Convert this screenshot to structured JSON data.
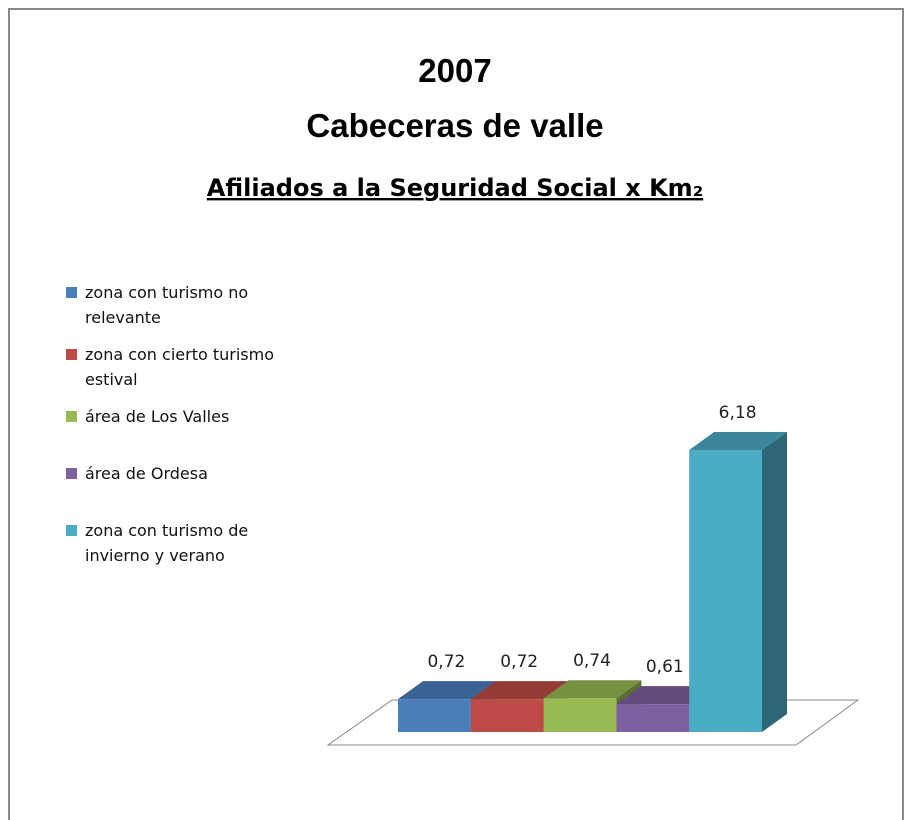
{
  "chart_data": {
    "type": "bar3d",
    "title": [
      "2007",
      "Cabeceras de valle"
    ],
    "subtitle": "Afiliados a la Seguridad Social x Km₂",
    "legend": "left",
    "series": [
      {
        "name": "zona con turismo no relevante",
        "color": "#4a7ebb",
        "values": [
          0.72
        ],
        "value_labels": [
          "0,72"
        ]
      },
      {
        "name": "zona con cierto turismo estival",
        "color": "#be4b48",
        "values": [
          0.72
        ],
        "value_labels": [
          "0,72"
        ]
      },
      {
        "name": "área de Los Valles",
        "color": "#98b954",
        "values": [
          0.74
        ],
        "value_labels": [
          "0,74"
        ]
      },
      {
        "name": "área de Ordesa",
        "color": "#7d60a0",
        "values": [
          0.61
        ],
        "value_labels": [
          "0,61"
        ]
      },
      {
        "name": "zona con turismo de invierno y verano",
        "color": "#4bacc6",
        "values": [
          6.18
        ],
        "value_labels": [
          "6,18"
        ]
      }
    ]
  }
}
